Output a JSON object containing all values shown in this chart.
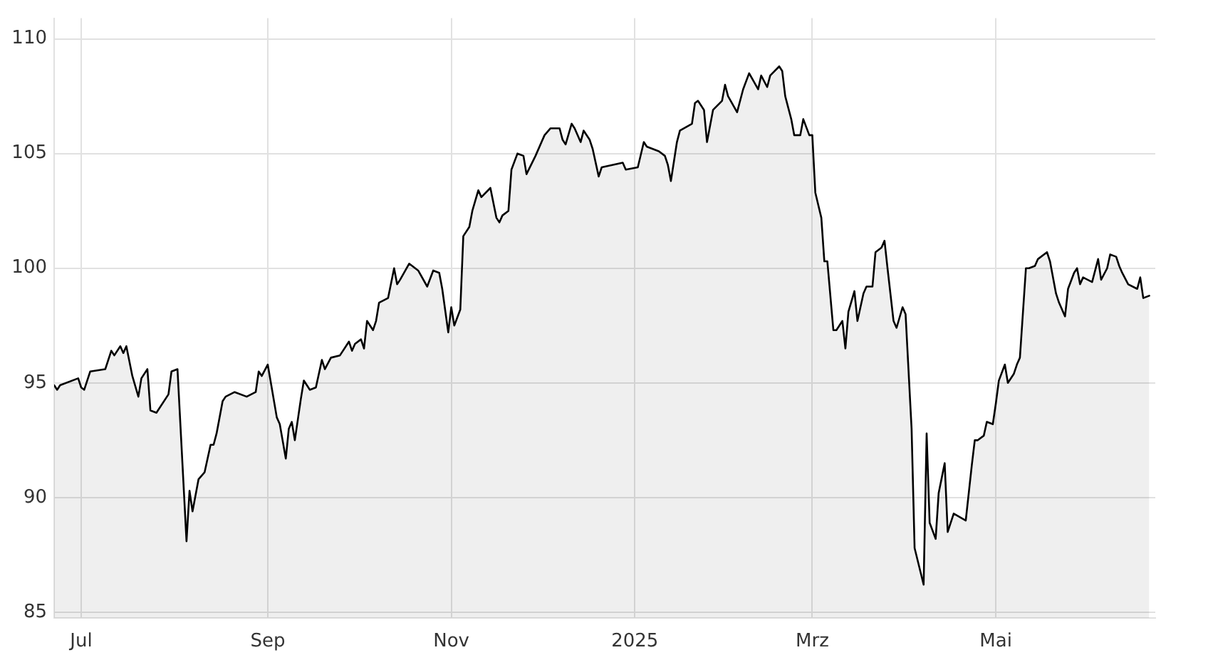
{
  "chart_data": {
    "type": "area",
    "color": "#000000",
    "x": [
      "2024-06-22",
      "2024-06-23",
      "2024-06-24",
      "2024-06-30",
      "2024-07-01",
      "2024-07-02",
      "2024-07-04",
      "2024-07-09",
      "2024-07-11",
      "2024-07-12",
      "2024-07-14",
      "2024-07-15",
      "2024-07-16",
      "2024-07-18",
      "2024-07-20",
      "2024-07-21",
      "2024-07-23",
      "2024-07-24",
      "2024-07-26",
      "2024-07-30",
      "2024-07-31",
      "2024-08-02",
      "2024-08-05",
      "2024-08-06",
      "2024-08-07",
      "2024-08-09",
      "2024-08-11",
      "2024-08-13",
      "2024-08-14",
      "2024-08-15",
      "2024-08-17",
      "2024-08-18",
      "2024-08-21",
      "2024-08-25",
      "2024-08-28",
      "2024-08-29",
      "2024-08-30",
      "2024-09-01",
      "2024-09-04",
      "2024-09-05",
      "2024-09-07",
      "2024-09-08",
      "2024-09-09",
      "2024-09-10",
      "2024-09-12",
      "2024-09-13",
      "2024-09-15",
      "2024-09-17",
      "2024-09-19",
      "2024-09-20",
      "2024-09-22",
      "2024-09-25",
      "2024-09-28",
      "2024-09-29",
      "2024-09-30",
      "2024-10-02",
      "2024-10-03",
      "2024-10-04",
      "2024-10-06",
      "2024-10-07",
      "2024-10-08",
      "2024-10-11",
      "2024-10-13",
      "2024-10-14",
      "2024-10-15",
      "2024-10-18",
      "2024-10-21",
      "2024-10-24",
      "2024-10-26",
      "2024-10-28",
      "2024-10-29",
      "2024-10-31",
      "2024-11-01",
      "2024-11-02",
      "2024-11-04",
      "2024-11-05",
      "2024-11-07",
      "2024-11-08",
      "2024-11-10",
      "2024-11-11",
      "2024-11-14",
      "2024-11-16",
      "2024-11-17",
      "2024-11-18",
      "2024-11-20",
      "2024-11-21",
      "2024-11-23",
      "2024-11-25",
      "2024-11-26",
      "2024-11-29",
      "2024-12-02",
      "2024-12-04",
      "2024-12-07",
      "2024-12-08",
      "2024-12-09",
      "2024-12-11",
      "2024-12-12",
      "2024-12-14",
      "2024-12-15",
      "2024-12-17",
      "2024-12-18",
      "2024-12-20",
      "2024-12-21",
      "2024-12-28",
      "2024-12-29",
      "2025-01-02",
      "2025-01-04",
      "2025-01-05",
      "2025-01-09",
      "2025-01-11",
      "2025-01-12",
      "2025-01-13",
      "2025-01-15",
      "2025-01-16",
      "2025-01-20",
      "2025-01-21",
      "2025-01-22",
      "2025-01-24",
      "2025-01-25",
      "2025-01-27",
      "2025-01-30",
      "2025-01-31",
      "2025-02-01",
      "2025-02-04",
      "2025-02-06",
      "2025-02-08",
      "2025-02-11",
      "2025-02-12",
      "2025-02-14",
      "2025-02-15",
      "2025-02-18",
      "2025-02-19",
      "2025-02-20",
      "2025-02-22",
      "2025-02-23",
      "2025-02-25",
      "2025-02-26",
      "2025-02-28",
      "2025-03-01",
      "2025-03-02",
      "2025-03-04",
      "2025-03-05",
      "2025-03-06",
      "2025-03-08",
      "2025-03-09",
      "2025-03-11",
      "2025-03-12",
      "2025-03-13",
      "2025-03-15",
      "2025-03-16",
      "2025-03-18",
      "2025-03-19",
      "2025-03-21",
      "2025-03-22",
      "2025-03-24",
      "2025-03-25",
      "2025-03-26",
      "2025-03-28",
      "2025-03-29",
      "2025-03-31",
      "2025-04-01",
      "2025-04-03",
      "2025-04-04",
      "2025-04-07",
      "2025-04-08",
      "2025-04-09",
      "2025-04-11",
      "2025-04-12",
      "2025-04-14",
      "2025-04-15",
      "2025-04-17",
      "2025-04-21",
      "2025-04-23",
      "2025-04-24",
      "2025-04-25",
      "2025-04-27",
      "2025-04-28",
      "2025-04-30",
      "2025-05-01",
      "2025-05-02",
      "2025-05-04",
      "2025-05-05",
      "2025-05-07",
      "2025-05-08",
      "2025-05-09",
      "2025-05-11",
      "2025-05-12",
      "2025-05-14",
      "2025-05-15",
      "2025-05-18",
      "2025-05-19",
      "2025-05-21",
      "2025-05-22",
      "2025-05-24",
      "2025-05-25",
      "2025-05-27",
      "2025-05-28",
      "2025-05-29",
      "2025-05-30",
      "2025-06-02",
      "2025-06-04",
      "2025-06-05",
      "2025-06-07",
      "2025-06-08",
      "2025-06-10",
      "2025-06-11",
      "2025-06-12",
      "2025-06-14",
      "2025-06-17",
      "2025-06-18",
      "2025-06-19",
      "2025-06-21"
    ],
    "values": [
      94.9,
      94.7,
      94.9,
      95.2,
      94.8,
      94.7,
      95.5,
      95.6,
      96.4,
      96.2,
      96.6,
      96.3,
      96.6,
      95.3,
      94.4,
      95.2,
      95.6,
      93.8,
      93.7,
      94.5,
      95.5,
      95.6,
      88.1,
      90.3,
      89.4,
      90.8,
      91.1,
      92.3,
      92.3,
      92.8,
      94.2,
      94.4,
      94.6,
      94.4,
      94.6,
      95.5,
      95.3,
      95.8,
      93.5,
      93.2,
      91.7,
      93.0,
      93.3,
      92.5,
      94.3,
      95.1,
      94.7,
      94.8,
      96.0,
      95.6,
      96.1,
      96.2,
      96.8,
      96.4,
      96.7,
      96.9,
      96.5,
      97.7,
      97.3,
      97.7,
      98.5,
      98.7,
      100.0,
      99.3,
      99.5,
      100.2,
      99.9,
      99.2,
      99.9,
      99.8,
      99.1,
      97.2,
      98.3,
      97.5,
      98.2,
      101.4,
      101.8,
      102.5,
      103.4,
      103.1,
      103.5,
      102.2,
      102.0,
      102.3,
      102.5,
      104.3,
      105.0,
      104.9,
      104.1,
      104.9,
      105.8,
      106.1,
      106.1,
      105.6,
      105.4,
      106.3,
      106.1,
      105.5,
      106.0,
      105.6,
      105.2,
      104.0,
      104.4,
      104.6,
      104.3,
      104.4,
      105.5,
      105.3,
      105.1,
      104.9,
      104.5,
      103.8,
      105.5,
      106.0,
      106.3,
      107.2,
      107.3,
      106.9,
      105.5,
      106.9,
      107.3,
      108.0,
      107.5,
      106.8,
      107.8,
      108.5,
      107.8,
      108.4,
      107.9,
      108.4,
      108.8,
      108.6,
      107.5,
      106.5,
      105.8,
      105.8,
      106.5,
      105.8,
      105.8,
      103.3,
      102.2,
      100.3,
      100.3,
      97.3,
      97.3,
      97.7,
      96.5,
      98.1,
      99.0,
      97.7,
      98.9,
      99.2,
      99.2,
      100.7,
      100.9,
      101.2,
      100.0,
      97.7,
      97.4,
      98.3,
      98.0,
      93.0,
      87.8,
      86.2,
      92.8,
      88.9,
      88.2,
      90.2,
      91.5,
      88.5,
      89.3,
      89.0,
      91.4,
      92.5,
      92.5,
      92.7,
      93.3,
      93.2,
      94.1,
      95.1,
      95.8,
      95.0,
      95.4,
      95.8,
      96.1,
      100.0,
      100.0,
      100.1,
      100.4,
      100.7,
      100.3,
      98.9,
      98.5,
      97.9,
      99.1,
      99.8,
      100.0,
      99.3,
      99.6,
      99.4,
      100.4,
      99.5,
      100.0,
      100.6,
      100.5,
      100.1,
      99.8,
      99.3,
      99.1,
      99.6,
      98.7,
      98.8
    ],
    "xlim": [
      "2024-06-22",
      "2025-06-23"
    ],
    "xticks": [
      {
        "value": "2024-07-01",
        "label": "Jul"
      },
      {
        "value": "2024-09-01",
        "label": "Sep"
      },
      {
        "value": "2024-11-01",
        "label": "Nov"
      },
      {
        "value": "2025-01-01",
        "label": "2025"
      },
      {
        "value": "2025-03-01",
        "label": "Mrz"
      },
      {
        "value": "2025-05-01",
        "label": "Mai"
      }
    ],
    "ylim": [
      84.75,
      110.9
    ],
    "yticks": [
      85,
      90,
      95,
      100,
      105,
      110
    ],
    "grid": true,
    "legend": false,
    "marker": "none"
  }
}
